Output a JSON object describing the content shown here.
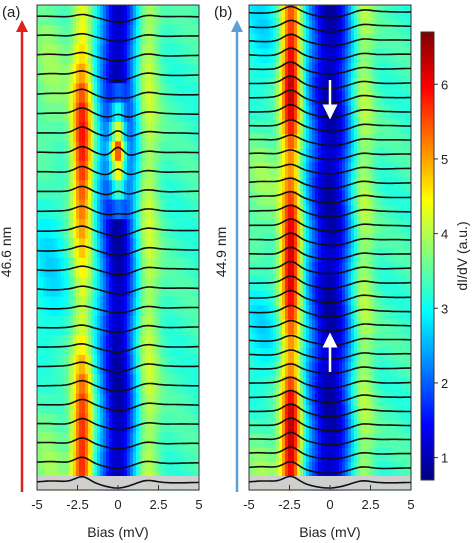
{
  "chart_data": [
    {
      "panel_label": "(a)",
      "type": "heatmap",
      "xlabel": "Bias (mV)",
      "xticks": [
        "-5",
        "-2.5",
        "0",
        "2.5",
        "5"
      ],
      "xlim": [
        -5,
        5
      ],
      "scan_length_label": "46.6 nm",
      "arrow_color": "#e0211b",
      "n_spectra": 25,
      "features": {
        "gap_halfwidth_mV": 0.8,
        "coherence_peak_mV": [
          -2.2,
          1.8
        ],
        "zero_bias_peak_rows": [
          14,
          20
        ]
      }
    },
    {
      "panel_label": "(b)",
      "type": "heatmap",
      "xlabel": "Bias (mV)",
      "xticks": [
        "-5",
        "-2.5",
        "0",
        "2.5",
        "5"
      ],
      "xlim": [
        -5,
        5
      ],
      "scan_length_label": "44.9 nm",
      "arrow_color": "#5aa0d8",
      "n_spectra": 34,
      "features": {
        "gap_halfwidth_mV": 1.0,
        "coherence_peak_mV": [
          -2.4,
          2.0
        ],
        "marker_arrows": [
          "down",
          "up"
        ]
      }
    }
  ],
  "colorbar": {
    "label": "dI/dV (a.u.)",
    "ticks": [
      "1",
      "2",
      "3",
      "4",
      "5",
      "6"
    ],
    "range": [
      0.7,
      6.7
    ],
    "colors": [
      "#00007f",
      "#0000ff",
      "#0080ff",
      "#00ffff",
      "#80ff80",
      "#ffff00",
      "#ff8000",
      "#ff0000",
      "#7f0000"
    ]
  }
}
